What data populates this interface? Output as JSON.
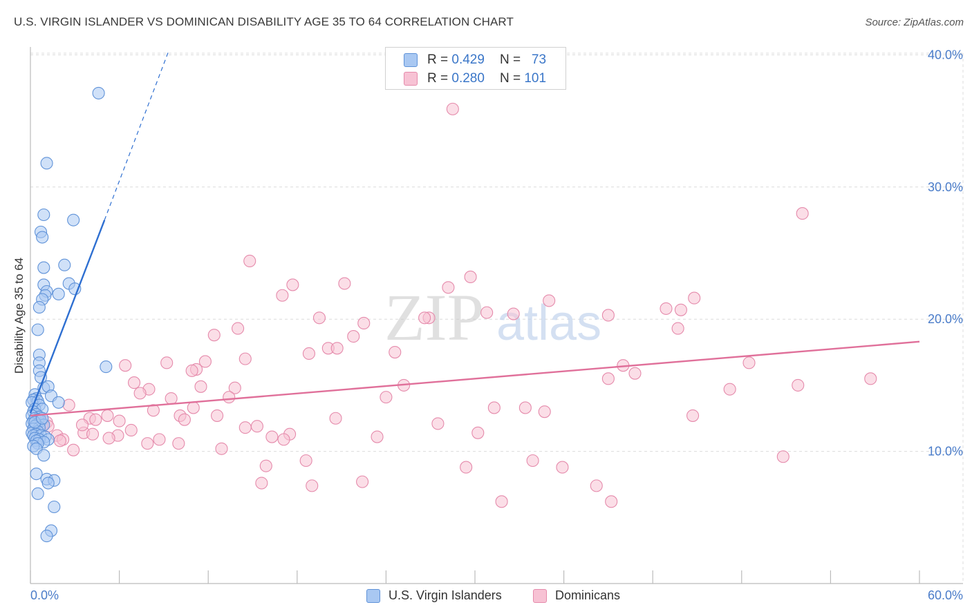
{
  "title": "U.S. VIRGIN ISLANDER VS DOMINICAN DISABILITY AGE 35 TO 64 CORRELATION CHART",
  "source": "Source: ZipAtlas.com",
  "watermark": {
    "zip": "ZIP",
    "atlas": "atlas"
  },
  "legend": {
    "series1": {
      "r_label": "R =",
      "r_value": "0.429",
      "n_label": "N =",
      "n_value": "73"
    },
    "series2": {
      "r_label": "R =",
      "r_value": "0.280",
      "n_label": "N =",
      "n_value": "101"
    }
  },
  "bottom_legend": [
    "U.S. Virgin Islanders",
    "Dominicans"
  ],
  "colors": {
    "blue_fill": "#a9c8f2",
    "blue_stroke": "#5f92d8",
    "blue_line": "#2e6fd1",
    "pink_fill": "#f7c2d4",
    "pink_stroke": "#e58aab",
    "pink_line": "#e0709a",
    "grid": "#dcdcdc",
    "tick_label": "#4a7cc9"
  },
  "chart_data": {
    "type": "scatter",
    "title": "U.S. VIRGIN ISLANDER VS DOMINICAN DISABILITY AGE 35 TO 64 CORRELATION CHART",
    "xlabel": "",
    "ylabel": "Disability Age 35 to 64",
    "xlim": [
      0,
      60
    ],
    "ylim": [
      0,
      42
    ],
    "x_tick_labels": [
      "0.0%",
      "60.0%"
    ],
    "y_ticks": [
      10,
      20,
      30,
      40
    ],
    "y_tick_labels": [
      "10.0%",
      "20.0%",
      "30.0%",
      "40.0%"
    ],
    "grid": true,
    "series": [
      {
        "name": "U.S. Virgin Islanders",
        "R": 0.429,
        "N": 73,
        "trend": {
          "x0": 0.0,
          "y0": 12.9,
          "x1": 5.0,
          "y1": 27.5,
          "dash_x1": 9.3,
          "dash_y1": 40.2
        },
        "points": [
          [
            4.6,
            37.1
          ],
          [
            1.1,
            31.8
          ],
          [
            0.9,
            27.9
          ],
          [
            2.9,
            27.5
          ],
          [
            0.7,
            26.6
          ],
          [
            0.8,
            26.2
          ],
          [
            2.3,
            24.1
          ],
          [
            0.9,
            23.9
          ],
          [
            2.6,
            22.7
          ],
          [
            0.9,
            22.6
          ],
          [
            3.0,
            22.3
          ],
          [
            1.1,
            22.1
          ],
          [
            1.9,
            21.9
          ],
          [
            1.0,
            21.8
          ],
          [
            0.8,
            21.5
          ],
          [
            0.6,
            20.9
          ],
          [
            0.5,
            19.2
          ],
          [
            0.6,
            17.3
          ],
          [
            0.6,
            16.7
          ],
          [
            5.1,
            16.4
          ],
          [
            0.6,
            16.1
          ],
          [
            0.7,
            15.6
          ],
          [
            0.9,
            14.8
          ],
          [
            1.2,
            14.9
          ],
          [
            0.3,
            14.3
          ],
          [
            1.4,
            14.2
          ],
          [
            0.4,
            14.0
          ],
          [
            0.2,
            13.9
          ],
          [
            0.5,
            13.8
          ],
          [
            0.1,
            13.7
          ],
          [
            1.9,
            13.7
          ],
          [
            0.6,
            13.5
          ],
          [
            0.3,
            13.2
          ],
          [
            0.8,
            13.2
          ],
          [
            0.2,
            13.0
          ],
          [
            0.4,
            12.8
          ],
          [
            0.1,
            12.7
          ],
          [
            0.6,
            12.6
          ],
          [
            0.3,
            12.5
          ],
          [
            0.5,
            12.4
          ],
          [
            0.2,
            12.3
          ],
          [
            0.7,
            12.3
          ],
          [
            0.1,
            12.1
          ],
          [
            0.4,
            12.0
          ],
          [
            0.9,
            12.0
          ],
          [
            0.3,
            11.9
          ],
          [
            0.6,
            11.8
          ],
          [
            0.2,
            11.7
          ],
          [
            0.5,
            11.5
          ],
          [
            0.1,
            11.4
          ],
          [
            0.4,
            11.3
          ],
          [
            0.2,
            11.2
          ],
          [
            0.7,
            11.2
          ],
          [
            1.0,
            11.1
          ],
          [
            0.3,
            11.0
          ],
          [
            0.6,
            10.9
          ],
          [
            1.2,
            10.9
          ],
          [
            0.4,
            10.8
          ],
          [
            0.9,
            10.7
          ],
          [
            0.5,
            10.6
          ],
          [
            0.2,
            10.4
          ],
          [
            0.4,
            10.2
          ],
          [
            0.9,
            9.7
          ],
          [
            0.4,
            8.3
          ],
          [
            1.1,
            7.9
          ],
          [
            1.6,
            7.8
          ],
          [
            1.2,
            7.6
          ],
          [
            0.5,
            6.8
          ],
          [
            1.6,
            5.8
          ],
          [
            1.4,
            4.0
          ],
          [
            1.1,
            3.6
          ],
          [
            0.3,
            12.2
          ],
          [
            0.8,
            12.5
          ]
        ]
      },
      {
        "name": "Dominicans",
        "R": 0.28,
        "N": 101,
        "trend": {
          "x0": 0.0,
          "y0": 12.7,
          "x1": 60.0,
          "y1": 18.3
        },
        "points": [
          [
            28.5,
            35.9
          ],
          [
            52.1,
            28.0
          ],
          [
            14.8,
            24.4
          ],
          [
            29.7,
            23.2
          ],
          [
            17.7,
            22.6
          ],
          [
            21.2,
            22.7
          ],
          [
            28.2,
            22.4
          ],
          [
            17.0,
            21.8
          ],
          [
            35.0,
            21.4
          ],
          [
            44.8,
            21.6
          ],
          [
            42.9,
            20.8
          ],
          [
            43.9,
            20.7
          ],
          [
            30.8,
            20.5
          ],
          [
            32.6,
            20.4
          ],
          [
            39.0,
            20.3
          ],
          [
            19.5,
            20.1
          ],
          [
            26.9,
            20.1
          ],
          [
            22.5,
            19.7
          ],
          [
            14.0,
            19.3
          ],
          [
            43.7,
            19.3
          ],
          [
            12.4,
            18.8
          ],
          [
            21.8,
            18.7
          ],
          [
            20.1,
            17.8
          ],
          [
            20.7,
            17.8
          ],
          [
            18.8,
            17.4
          ],
          [
            24.6,
            17.5
          ],
          [
            14.5,
            17.0
          ],
          [
            11.8,
            16.8
          ],
          [
            9.2,
            16.7
          ],
          [
            6.4,
            16.5
          ],
          [
            40.0,
            16.5
          ],
          [
            48.5,
            16.7
          ],
          [
            11.2,
            16.2
          ],
          [
            10.9,
            16.1
          ],
          [
            40.8,
            15.9
          ],
          [
            39.0,
            15.5
          ],
          [
            56.7,
            15.5
          ],
          [
            7.0,
            15.2
          ],
          [
            25.2,
            15.0
          ],
          [
            11.5,
            14.9
          ],
          [
            13.8,
            14.8
          ],
          [
            8.0,
            14.7
          ],
          [
            51.8,
            15.0
          ],
          [
            47.2,
            14.7
          ],
          [
            7.4,
            14.4
          ],
          [
            24.0,
            14.1
          ],
          [
            13.4,
            14.1
          ],
          [
            9.5,
            14.0
          ],
          [
            2.6,
            13.5
          ],
          [
            11.0,
            13.3
          ],
          [
            31.3,
            13.3
          ],
          [
            33.4,
            13.3
          ],
          [
            8.3,
            13.1
          ],
          [
            34.7,
            13.0
          ],
          [
            10.1,
            12.7
          ],
          [
            5.2,
            12.7
          ],
          [
            12.6,
            12.7
          ],
          [
            44.7,
            12.7
          ],
          [
            4.0,
            12.5
          ],
          [
            20.6,
            12.5
          ],
          [
            4.4,
            12.4
          ],
          [
            10.4,
            12.4
          ],
          [
            6.0,
            12.3
          ],
          [
            1.1,
            12.2
          ],
          [
            0.8,
            12.0
          ],
          [
            27.5,
            12.1
          ],
          [
            1.2,
            11.9
          ],
          [
            15.3,
            11.9
          ],
          [
            6.8,
            11.6
          ],
          [
            3.6,
            11.4
          ],
          [
            30.2,
            11.4
          ],
          [
            4.2,
            11.3
          ],
          [
            5.9,
            11.2
          ],
          [
            1.8,
            11.2
          ],
          [
            17.5,
            11.3
          ],
          [
            16.3,
            11.1
          ],
          [
            23.4,
            11.1
          ],
          [
            5.3,
            11.0
          ],
          [
            8.7,
            10.9
          ],
          [
            2.2,
            10.9
          ],
          [
            17.1,
            10.9
          ],
          [
            2.0,
            10.8
          ],
          [
            10.0,
            10.6
          ],
          [
            7.9,
            10.6
          ],
          [
            12.9,
            10.2
          ],
          [
            2.9,
            10.1
          ],
          [
            50.8,
            9.6
          ],
          [
            33.9,
            9.3
          ],
          [
            18.6,
            9.3
          ],
          [
            15.9,
            8.9
          ],
          [
            29.4,
            8.8
          ],
          [
            35.9,
            8.8
          ],
          [
            15.6,
            7.6
          ],
          [
            22.4,
            7.7
          ],
          [
            19.0,
            7.4
          ],
          [
            38.2,
            7.4
          ],
          [
            31.8,
            6.2
          ],
          [
            39.2,
            6.2
          ],
          [
            14.5,
            11.8
          ],
          [
            3.5,
            12.0
          ],
          [
            26.6,
            20.1
          ]
        ]
      }
    ]
  }
}
